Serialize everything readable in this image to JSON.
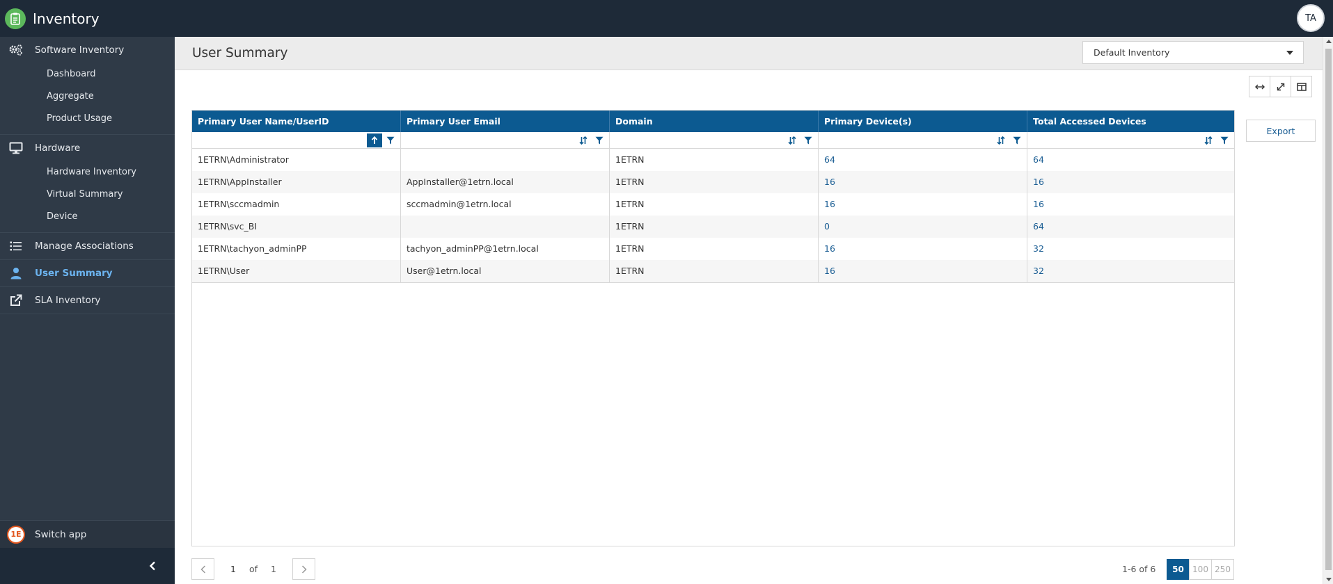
{
  "app": {
    "title": "Inventory",
    "user_initials": "TA"
  },
  "sidebar": {
    "groups": [
      {
        "label": "Software Inventory",
        "icon": "gears-icon",
        "items": [
          "Dashboard",
          "Aggregate",
          "Product Usage"
        ]
      },
      {
        "label": "Hardware",
        "icon": "monitor-icon",
        "items": [
          "Hardware Inventory",
          "Virtual Summary",
          "Device"
        ]
      },
      {
        "label": "Manage Associations",
        "icon": "list-icon",
        "items": []
      },
      {
        "label": "User Summary",
        "icon": "user-icon",
        "items": [],
        "active": true
      },
      {
        "label": "SLA Inventory",
        "icon": "external-link-icon",
        "items": []
      }
    ],
    "switch_app": "Switch app"
  },
  "page": {
    "title": "User Summary",
    "inventory_select": "Default Inventory",
    "export_label": "Export"
  },
  "grid": {
    "columns": [
      "Primary User Name/UserID",
      "Primary User Email",
      "Domain",
      "Primary Device(s)",
      "Total Accessed Devices"
    ],
    "rows": [
      [
        "1ETRN\\Administrator",
        "",
        "1ETRN",
        "64",
        "64"
      ],
      [
        "1ETRN\\AppInstaller",
        "AppInstaller@1etrn.local",
        "1ETRN",
        "16",
        "16"
      ],
      [
        "1ETRN\\sccmadmin",
        "sccmadmin@1etrn.local",
        "1ETRN",
        "16",
        "16"
      ],
      [
        "1ETRN\\svc_BI",
        "",
        "1ETRN",
        "0",
        "64"
      ],
      [
        "1ETRN\\tachyon_adminPP",
        "tachyon_adminPP@1etrn.local",
        "1ETRN",
        "16",
        "32"
      ],
      [
        "1ETRN\\User",
        "User@1etrn.local",
        "1ETRN",
        "16",
        "32"
      ]
    ]
  },
  "pager": {
    "page": "1",
    "of": "of",
    "total_pages": "1",
    "range": "1-6 of 6",
    "page_sizes": [
      "50",
      "100",
      "250"
    ],
    "selected_size": "50"
  },
  "colors": {
    "header_blue": "#0c5a91",
    "sidebar_bg": "#2f3a47",
    "topbar_bg": "#1e2a38",
    "link": "#1a5d93",
    "active_nav": "#6cb4f0"
  }
}
